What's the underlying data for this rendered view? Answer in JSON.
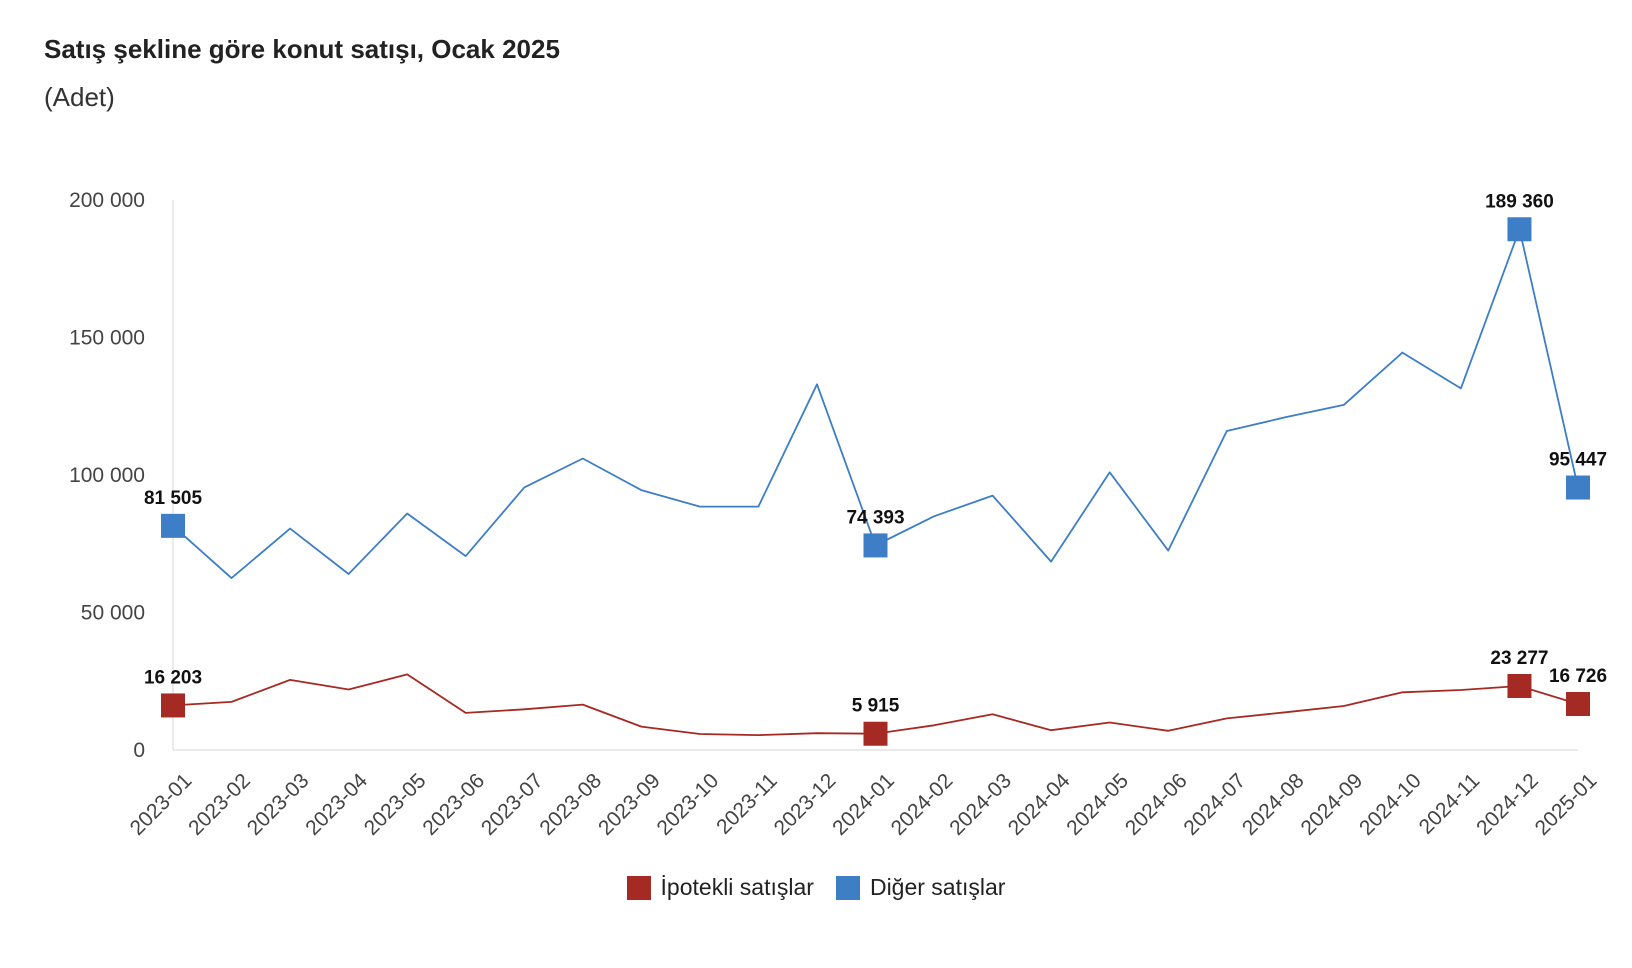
{
  "title": "Satış şekline göre konut satışı, Ocak 2025",
  "subtitle": "(Adet)",
  "chart_data": {
    "type": "line",
    "categories": [
      "2023-01",
      "2023-02",
      "2023-03",
      "2023-04",
      "2023-05",
      "2023-06",
      "2023-07",
      "2023-08",
      "2023-09",
      "2023-10",
      "2023-11",
      "2023-12",
      "2024-01",
      "2024-02",
      "2024-03",
      "2024-04",
      "2024-05",
      "2024-06",
      "2024-07",
      "2024-08",
      "2024-09",
      "2024-10",
      "2024-11",
      "2024-12",
      "2025-01"
    ],
    "ylim": [
      0,
      200000
    ],
    "yticks": [
      0,
      50000,
      100000,
      150000,
      200000
    ],
    "ytick_labels": [
      "0",
      "50 000",
      "100 000",
      "150 000",
      "200 000"
    ],
    "legend_position": "bottom",
    "series": [
      {
        "name": "İpotekli satışlar",
        "color": "#a52a24",
        "values": [
          16203,
          17500,
          25500,
          22000,
          27500,
          13500,
          14800,
          16500,
          8500,
          5800,
          5400,
          6100,
          5915,
          9000,
          13000,
          7200,
          10000,
          7000,
          11500,
          13700,
          16000,
          21000,
          21800,
          23277,
          16726
        ],
        "labels": {
          "0": "16 203",
          "12": "5 915",
          "23": "23 277",
          "24": "16 726"
        }
      },
      {
        "name": "Diğer satışlar",
        "color": "#3d7ec6",
        "values": [
          81505,
          62500,
          80500,
          64000,
          86000,
          70500,
          95500,
          106000,
          94500,
          88500,
          88500,
          133000,
          74393,
          85000,
          92500,
          68500,
          101000,
          72500,
          116000,
          121000,
          125500,
          144500,
          131500,
          189360,
          95447
        ],
        "labels": {
          "0": "81 505",
          "12": "74 393",
          "23": "189 360",
          "24": "95 447"
        }
      }
    ]
  }
}
